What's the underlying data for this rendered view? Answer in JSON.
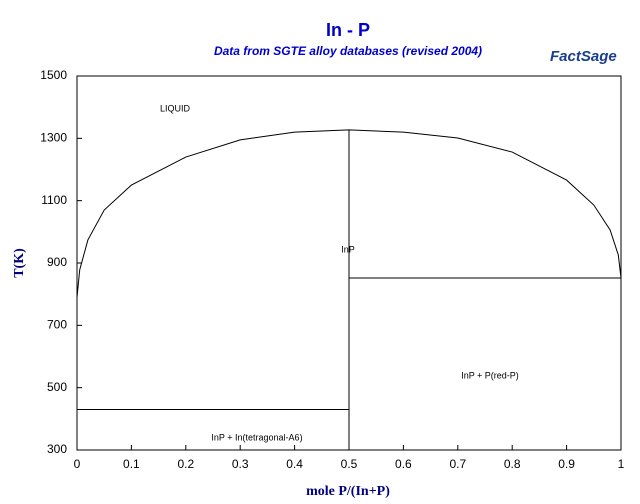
{
  "chart_data": {
    "type": "line",
    "title": "In - P",
    "subtitle": "Data from SGTE alloy databases (revised 2004)",
    "logo": "FactSage",
    "xlabel": "mole P/(In+P)",
    "ylabel": "T(K)",
    "xlim": [
      0,
      1
    ],
    "ylim": [
      300,
      1500
    ],
    "xticks": [
      0,
      0.1,
      0.2,
      0.3,
      0.4,
      0.5,
      0.6,
      0.7,
      0.8,
      0.9,
      1
    ],
    "yticks": [
      300,
      500,
      700,
      900,
      1100,
      1300,
      1500
    ],
    "grid": false,
    "series": [
      {
        "color": "#000000",
        "x": [
          0,
          0.005,
          0.02,
          0.05,
          0.1,
          0.2,
          0.3,
          0.4,
          0.5,
          0.6,
          0.7,
          0.8,
          0.9,
          0.95,
          0.98,
          0.995,
          1
        ],
        "values": [
          790,
          878,
          974,
          1070,
          1150,
          1240,
          1295,
          1320,
          1327,
          1320,
          1301,
          1256,
          1166,
          1086,
          1006,
          926,
          852
        ]
      },
      {
        "color": "#000000",
        "x": [
          0.5,
          0.5
        ],
        "values": [
          300,
          1327
        ]
      },
      {
        "color": "#000000",
        "x": [
          0.5,
          1
        ],
        "values": [
          852,
          852
        ]
      },
      {
        "color": "#000000",
        "x": [
          0,
          0.5
        ],
        "values": [
          430,
          430
        ]
      }
    ],
    "annotations": [
      "LIQUID",
      "InP",
      "InP + P(red-P)",
      "InP + In(tetragonal-A6)"
    ]
  }
}
